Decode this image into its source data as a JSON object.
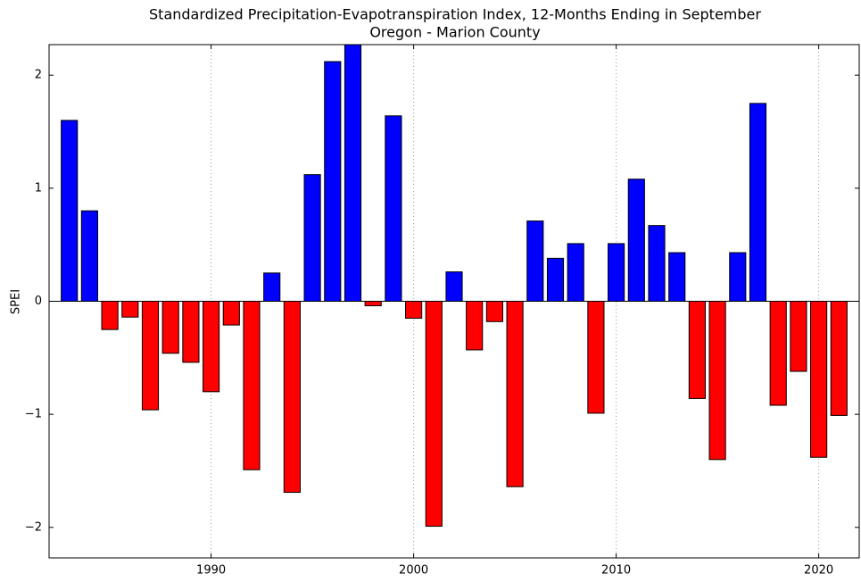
{
  "chart_data": {
    "type": "bar",
    "title": "Standardized Precipitation-Evapotranspiration Index, 12-Months Ending in September",
    "subtitle": "Oregon - Marion County",
    "y_label": "SPEI",
    "x": [
      1983,
      1984,
      1985,
      1986,
      1987,
      1988,
      1989,
      1990,
      1991,
      1992,
      1993,
      1994,
      1995,
      1996,
      1997,
      1998,
      1999,
      2000,
      2001,
      2002,
      2003,
      2004,
      2005,
      2006,
      2007,
      2008,
      2009,
      2010,
      2011,
      2012,
      2013,
      2014,
      2015,
      2016,
      2017,
      2018,
      2019,
      2020,
      2021
    ],
    "values": [
      1.6,
      0.8,
      -0.25,
      -0.14,
      -0.96,
      -0.46,
      -0.54,
      -0.8,
      -0.21,
      -1.49,
      0.25,
      -1.69,
      1.12,
      2.12,
      2.3,
      -0.04,
      1.64,
      -0.15,
      -1.99,
      0.26,
      -0.43,
      -0.18,
      -1.64,
      0.71,
      0.38,
      0.51,
      -0.99,
      0.51,
      1.08,
      0.67,
      0.43,
      -0.86,
      -1.4,
      0.43,
      1.75,
      -0.92,
      -0.62,
      -1.38,
      -1.01
    ],
    "positive_color": "#0000ff",
    "negative_color": "#ff0000",
    "xlim": [
      1982,
      2022
    ],
    "xticks": [
      1990,
      2000,
      2010,
      2020
    ],
    "ylim": [
      -2.27,
      2.27
    ],
    "yticks": [
      {
        "value": -2,
        "label": "−2"
      },
      {
        "value": -1,
        "label": "−1"
      },
      0,
      1,
      2
    ],
    "grid": true
  }
}
